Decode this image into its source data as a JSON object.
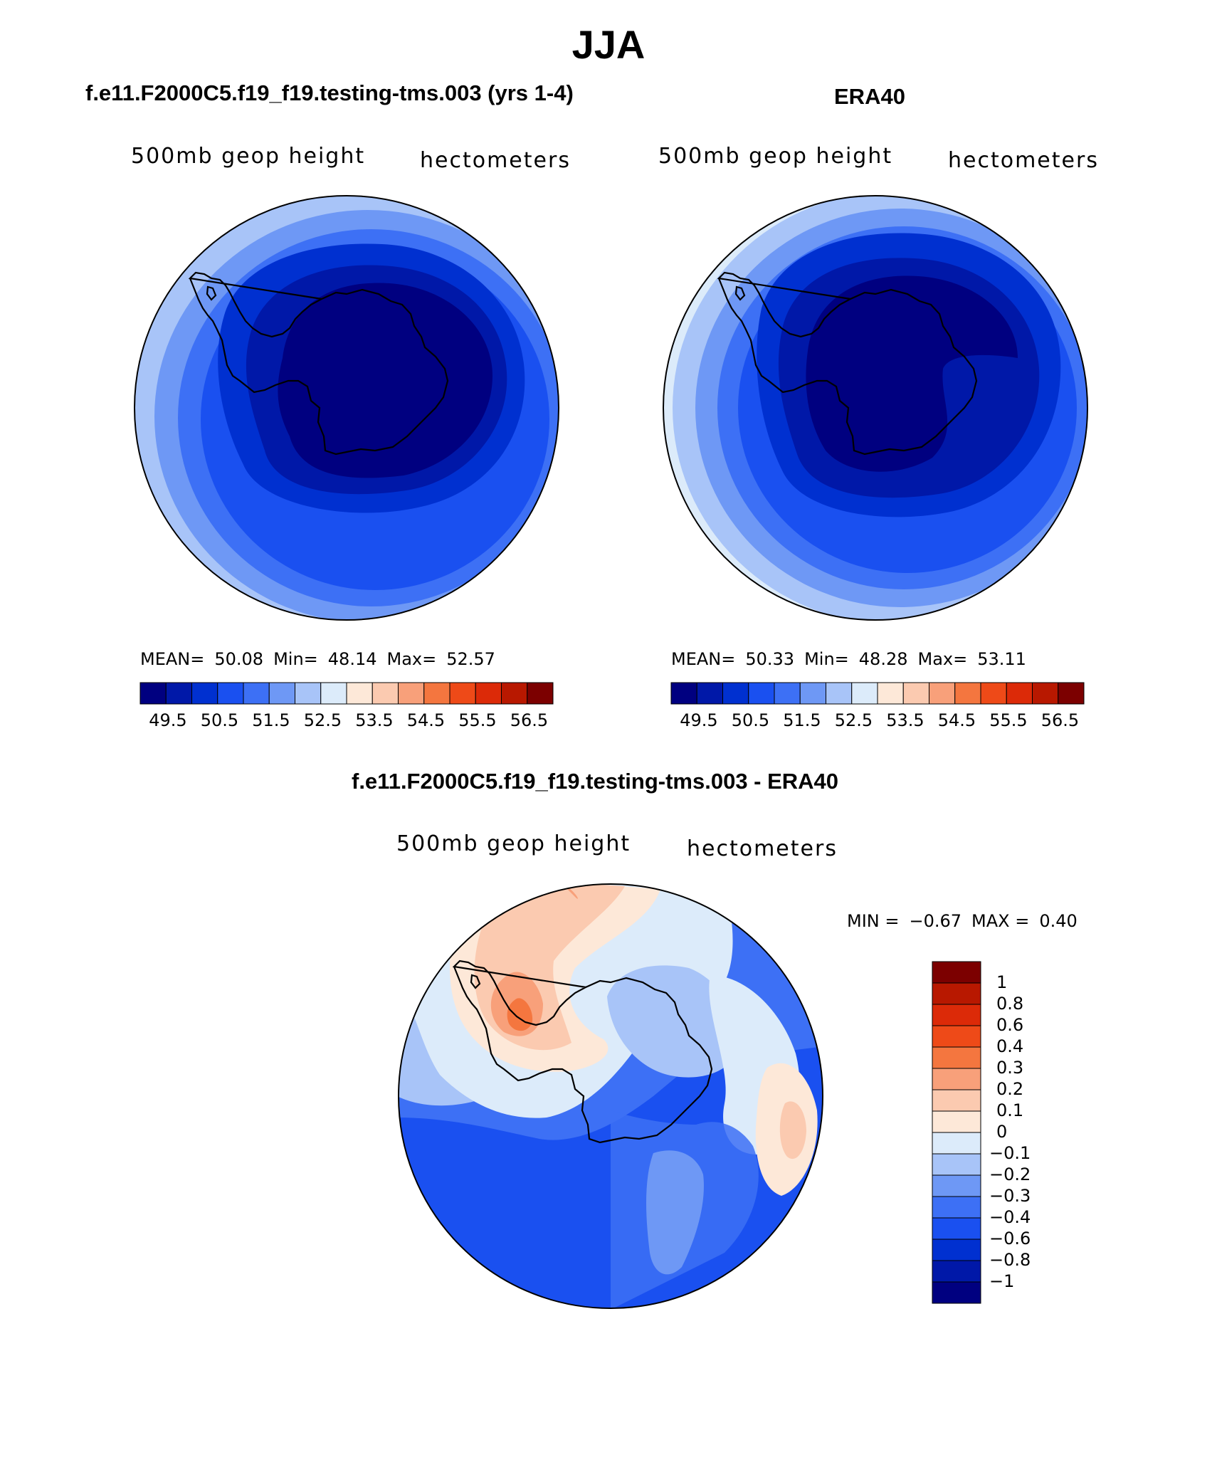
{
  "figure": {
    "title": "JJA"
  },
  "panels": [
    {
      "title": "f.e11.F2000C5.f19_f19.testing-tms.003 (yrs 1-4)",
      "left_label": "500mb geop height",
      "right_label": "hectometers",
      "mean_label": "MEAN=",
      "mean_value": "50.08",
      "min_label": "Min=",
      "min_value": "48.14",
      "max_label": "Max=",
      "max_value": "52.57"
    },
    {
      "title": "ERA40",
      "left_label": "500mb geop height",
      "right_label": "hectometers",
      "mean_label": "MEAN=",
      "mean_value": "50.33",
      "min_label": "Min=",
      "min_value": "48.28",
      "max_label": "Max=",
      "max_value": "53.11"
    }
  ],
  "diff_panel": {
    "title": "f.e11.F2000C5.f19_f19.testing-tms.003 - ERA40",
    "left_label": "500mb geop height",
    "right_label": "hectometers",
    "min_label": "MIN =",
    "min_value": "−0.67",
    "max_label": "MAX =",
    "max_value": "0.40"
  },
  "colorbars": {
    "horizontal_colors": [
      "#000080",
      "#0018A8",
      "#0030D0",
      "#1A50F0",
      "#3D70F5",
      "#6E98F5",
      "#A8C4F8",
      "#DCEBFA",
      "#FDE8D8",
      "#FBCAB0",
      "#F8A07A",
      "#F4763F",
      "#EE4A18",
      "#DC2A08",
      "#B81800",
      "#7C0000"
    ],
    "horizontal_ticks": [
      "49.5",
      "50.5",
      "51.5",
      "52.5",
      "53.5",
      "54.5",
      "55.5",
      "56.5"
    ],
    "vertical_colors": [
      "#000080",
      "#0018A8",
      "#0030D0",
      "#1A50F0",
      "#3D70F5",
      "#6E98F5",
      "#A8C4F8",
      "#DCEBFA",
      "#FDE8D8",
      "#FBCAB0",
      "#F8A07A",
      "#F4763F",
      "#EE4A18",
      "#DC2A08",
      "#B81800",
      "#7C0000"
    ],
    "vertical_ticks": [
      "1",
      "0.8",
      "0.6",
      "0.4",
      "0.3",
      "0.2",
      "0.1",
      "0",
      "−0.1",
      "−0.2",
      "−0.3",
      "−0.4",
      "−0.6",
      "−0.8",
      "−1"
    ]
  },
  "map_colors": {
    "navy": "#000080",
    "dark_blue": "#0018A8",
    "blue1": "#0030D0",
    "blue2": "#1A50F0",
    "blue3": "#3D70F5",
    "blue4": "#6E98F5",
    "blue5": "#A8C4F8",
    "blue6": "#DCEBFA",
    "peach1": "#FDE8D8",
    "peach2": "#FBCAB0",
    "orange1": "#F8A07A",
    "orange2": "#F4763F"
  }
}
